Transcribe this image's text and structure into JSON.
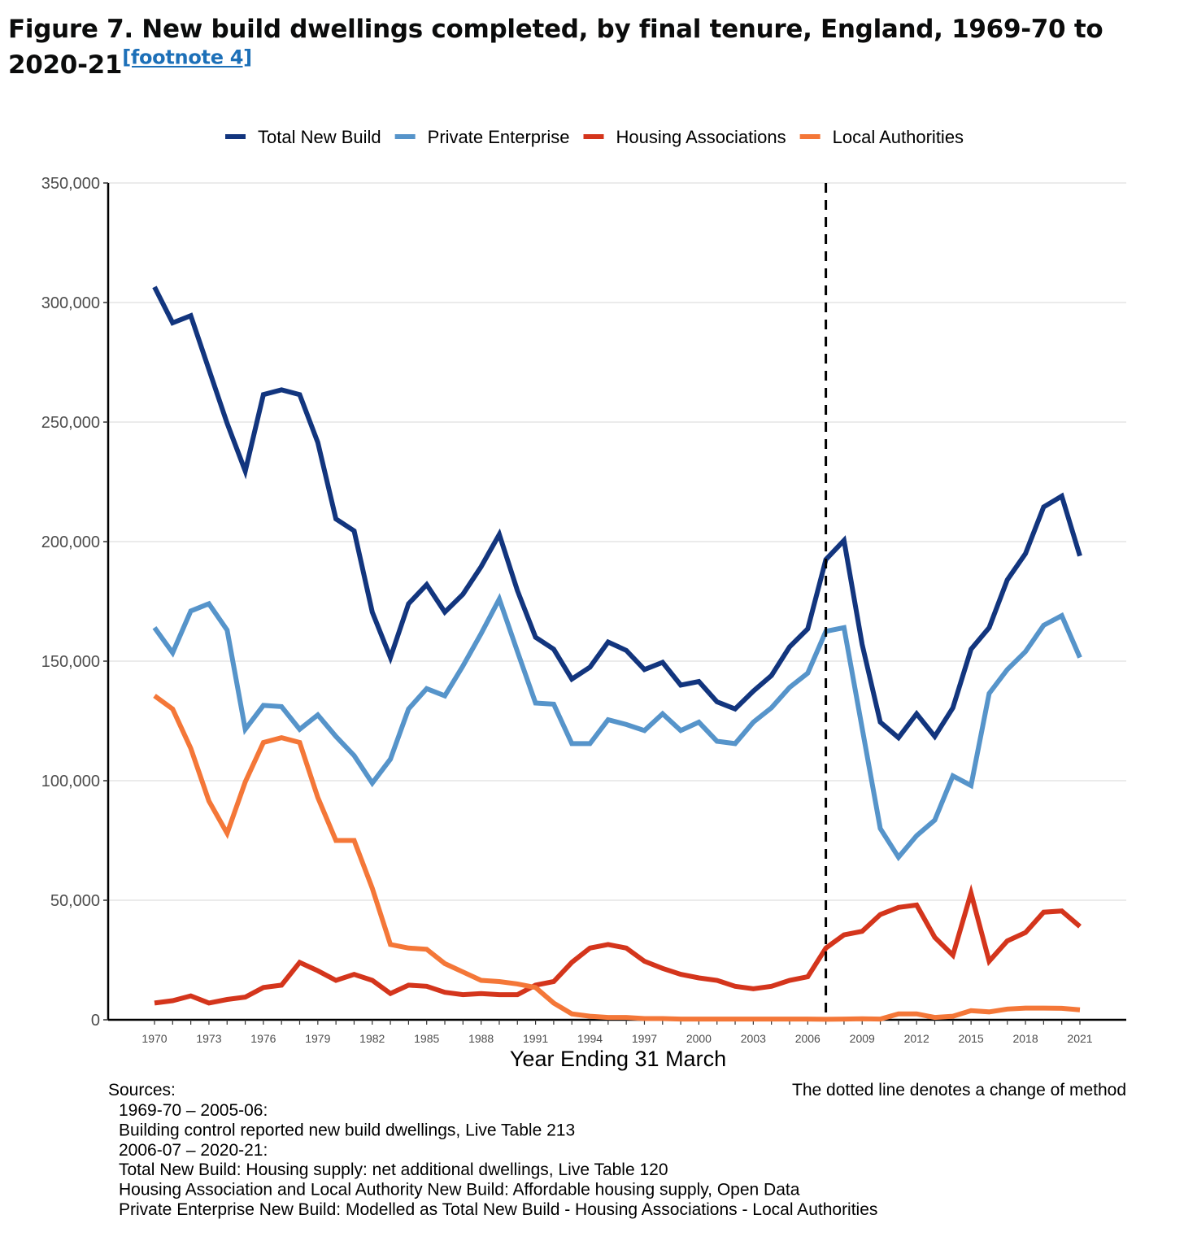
{
  "page": {
    "title": "Figure 7. New build dwellings completed, by final tenure, England, 1969-70 to 2020-21",
    "footnote_link": "[footnote 4]"
  },
  "chart_data": {
    "type": "line",
    "xlabel": "Year Ending 31 March",
    "ylabel": "",
    "ylim": [
      0,
      350000
    ],
    "xlim": [
      1970,
      2021
    ],
    "yticks": [
      0,
      50000,
      100000,
      150000,
      200000,
      250000,
      300000,
      350000
    ],
    "ytick_labels": [
      "0",
      "50,000",
      "100,000",
      "150,000",
      "200,000",
      "250,000",
      "300,000",
      "350,000"
    ],
    "xticks": [
      1970,
      1973,
      1976,
      1979,
      1982,
      1985,
      1988,
      1991,
      1994,
      1997,
      2000,
      2003,
      2006,
      2009,
      2012,
      2015,
      2018,
      2021
    ],
    "grid": "horizontal",
    "legend_position": "top",
    "method_change_year": 2007,
    "method_change_note": "The dotted line denotes a change of method",
    "x": [
      1970,
      1971,
      1972,
      1973,
      1974,
      1975,
      1976,
      1977,
      1978,
      1979,
      1980,
      1981,
      1982,
      1983,
      1984,
      1985,
      1986,
      1987,
      1988,
      1989,
      1990,
      1991,
      1992,
      1993,
      1994,
      1995,
      1996,
      1997,
      1998,
      1999,
      2000,
      2001,
      2002,
      2003,
      2004,
      2005,
      2006,
      2007,
      2008,
      2009,
      2010,
      2011,
      2012,
      2013,
      2014,
      2015,
      2016,
      2017,
      2018,
      2019,
      2020,
      2021
    ],
    "series": [
      {
        "name": "Total New Build",
        "color": "#12357e",
        "values": [
          306500,
          291500,
          294500,
          272000,
          249500,
          229500,
          261500,
          263500,
          261500,
          241500,
          209500,
          204500,
          170500,
          151500,
          174000,
          182000,
          170500,
          178000,
          189500,
          203000,
          179500,
          160000,
          155000,
          142500,
          147500,
          158000,
          154500,
          146500,
          149500,
          140000,
          141500,
          133000,
          130000,
          137500,
          144000,
          156000,
          163500,
          192500,
          200500,
          157000,
          124500,
          118000,
          128000,
          118500,
          130500,
          155000,
          164000,
          184000,
          195000,
          214500,
          219000,
          194000
        ]
      },
      {
        "name": "Private Enterprise",
        "color": "#5694ca",
        "values": [
          164000,
          153500,
          171000,
          174000,
          163000,
          121500,
          131500,
          131000,
          121500,
          127500,
          118500,
          110500,
          99000,
          109000,
          130000,
          138500,
          135500,
          148000,
          161500,
          176000,
          154000,
          132500,
          132000,
          115500,
          115500,
          125500,
          123500,
          121000,
          128000,
          121000,
          124500,
          116500,
          115500,
          124500,
          130500,
          139000,
          145000,
          162500,
          164000,
          122000,
          80000,
          68000,
          77000,
          83500,
          102000,
          98000,
          136500,
          146500,
          154000,
          165000,
          169000,
          151500
        ]
      },
      {
        "name": "Housing Associations",
        "color": "#d4351c",
        "values": [
          7000,
          8000,
          10000,
          7000,
          8500,
          9500,
          13500,
          14500,
          24000,
          20500,
          16500,
          19000,
          16500,
          11000,
          14500,
          14000,
          11500,
          10500,
          11000,
          10500,
          10500,
          14500,
          16000,
          24000,
          30000,
          31500,
          30000,
          24500,
          21500,
          19000,
          17500,
          16500,
          14000,
          13000,
          14000,
          16500,
          18000,
          30000,
          35500,
          37000,
          44000,
          47000,
          48000,
          34500,
          27000,
          53000,
          24500,
          33000,
          36500,
          45000,
          45500,
          39000
        ]
      },
      {
        "name": "Local Authorities",
        "color": "#f47738",
        "values": [
          135500,
          130000,
          113500,
          91500,
          78000,
          99500,
          116000,
          118000,
          116000,
          93000,
          75000,
          75000,
          55000,
          31500,
          30000,
          29500,
          23500,
          20000,
          16500,
          16000,
          15000,
          13500,
          7000,
          2500,
          1500,
          1000,
          1000,
          500,
          500,
          300,
          300,
          300,
          300,
          300,
          300,
          300,
          300,
          200,
          300,
          400,
          300,
          2500,
          2500,
          1000,
          1500,
          3800,
          3300,
          4500,
          4900,
          4900,
          4800,
          4200
        ]
      }
    ]
  },
  "sources": {
    "heading": "Sources:",
    "lines": [
      "1969-70 – 2005-06:",
      "Building control reported new build dwellings, Live Table 213",
      "2006-07 – 2020-21:",
      "Total New Build: Housing supply: net additional dwellings, Live Table 120",
      "Housing Association and Local Authority New Build: Affordable housing supply, Open Data",
      "Private Enterprise New Build: Modelled as Total New Build - Housing Associations - Local Authorities"
    ]
  }
}
